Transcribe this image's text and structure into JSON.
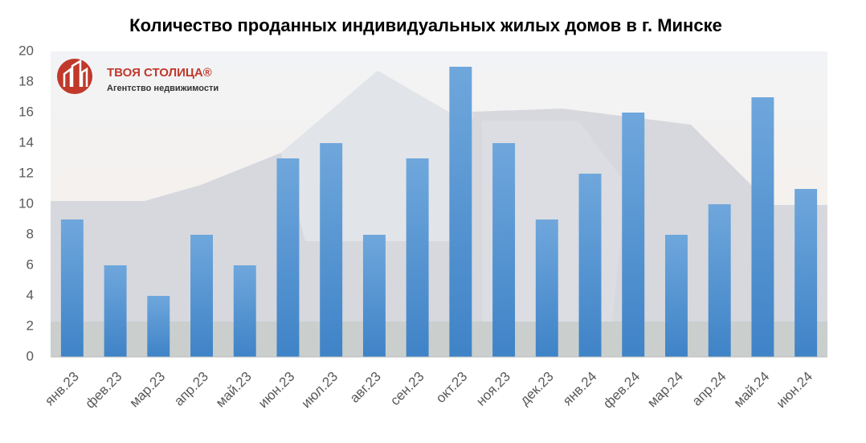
{
  "chart_data": {
    "type": "bar",
    "title": "Количество проданных индивидуальных жилых домов в г. Минске",
    "logo": {
      "name": "ТВОЯ СТОЛИЦА®",
      "tagline": "Агентство недвижимости"
    },
    "categories": [
      "янв.23",
      "фев.23",
      "мар.23",
      "апр.23",
      "май.23",
      "июн.23",
      "июл.23",
      "авг.23",
      "сен.23",
      "окт.23",
      "ноя.23",
      "дек.23",
      "янв.24",
      "фев.24",
      "мар.24",
      "апр.24",
      "май.24",
      "июн.24"
    ],
    "values": [
      9,
      6,
      4,
      8,
      6,
      13,
      14,
      8,
      13,
      19,
      14,
      9,
      12,
      16,
      8,
      10,
      17,
      11
    ],
    "color": "#5b9bd5",
    "ylim": [
      0,
      20
    ],
    "yticks": [
      0,
      2,
      4,
      6,
      8,
      10,
      12,
      14,
      16,
      18,
      20
    ],
    "grid": false
  }
}
